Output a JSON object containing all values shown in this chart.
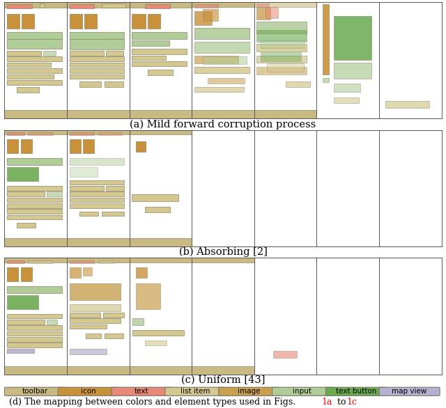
{
  "fig_width": 6.4,
  "fig_height": 5.86,
  "colors": {
    "toolbar": "#c8ba82",
    "icon": "#c8913a",
    "text": "#e88878",
    "list_item": "#d4c890",
    "image": "#c8a050",
    "input": "#b0cc98",
    "text_button": "#6aaa50",
    "map_view": "#b8b0d0",
    "bg": "#ffffff"
  },
  "legend_items": [
    {
      "label": "toolbar",
      "color": "#c8ba82"
    },
    {
      "label": "icon",
      "color": "#c8913a"
    },
    {
      "label": "text",
      "color": "#e88878"
    },
    {
      "label": "list item",
      "color": "#d4c890"
    },
    {
      "label": "image",
      "color": "#c8a050"
    },
    {
      "label": "input",
      "color": "#b0cc98"
    },
    {
      "label": "text button",
      "color": "#6aaa50"
    },
    {
      "label": "map view",
      "color": "#b8b0d0"
    }
  ],
  "caption_a": "(a) Mild forward corruption process",
  "caption_b": "(b) Absorbing [2]",
  "caption_c": "(c) Uniform [43]",
  "caption_d": "(d) The mapping between colors and element types used in Figs.",
  "caption_d_red1": "1a",
  "caption_d_to": " to ",
  "caption_d_red2": "1c"
}
